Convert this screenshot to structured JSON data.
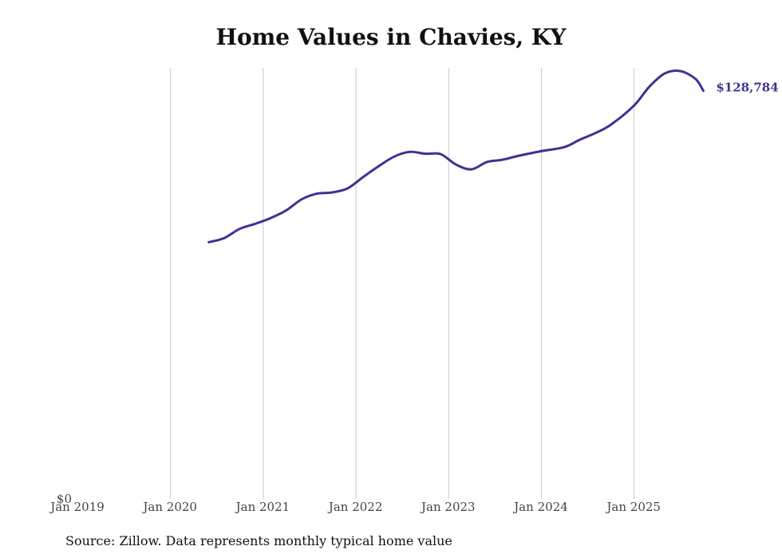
{
  "chart_data": {
    "type": "line",
    "title": "Home Values in Chavies, KY",
    "xlabel": "",
    "ylabel": "",
    "x_ticks": [
      "Jan 2019",
      "Jan 2020",
      "Jan 2021",
      "Jan 2022",
      "Jan 2023",
      "Jan 2024",
      "Jan 2025"
    ],
    "y_ticks": [
      "$0"
    ],
    "ylim": [
      0,
      136000
    ],
    "x_range": [
      "2019-01",
      "2025-12"
    ],
    "grid": "vertical",
    "line_color": "#3a3591",
    "end_label": "$128,784",
    "series": [
      {
        "points": [
          [
            "2020-06",
            81000
          ],
          [
            "2020-08",
            82300
          ],
          [
            "2020-10",
            85200
          ],
          [
            "2020-12",
            86800
          ],
          [
            "2021-02",
            88600
          ],
          [
            "2021-04",
            91000
          ],
          [
            "2021-06",
            94500
          ],
          [
            "2021-08",
            96300
          ],
          [
            "2021-10",
            96700
          ],
          [
            "2021-12",
            98000
          ],
          [
            "2022-02",
            101600
          ],
          [
            "2022-04",
            105000
          ],
          [
            "2022-06",
            108000
          ],
          [
            "2022-08",
            109500
          ],
          [
            "2022-10",
            108900
          ],
          [
            "2022-12",
            108800
          ],
          [
            "2023-02",
            105500
          ],
          [
            "2023-04",
            104000
          ],
          [
            "2023-06",
            106300
          ],
          [
            "2023-08",
            107000
          ],
          [
            "2023-10",
            108200
          ],
          [
            "2024-01",
            109700
          ],
          [
            "2024-04",
            111000
          ],
          [
            "2024-06",
            113300
          ],
          [
            "2024-08",
            115400
          ],
          [
            "2024-10",
            118000
          ],
          [
            "2025-01",
            124000
          ],
          [
            "2025-03",
            130000
          ],
          [
            "2025-05",
            134200
          ],
          [
            "2025-07",
            135000
          ],
          [
            "2025-09",
            132500
          ],
          [
            "2025-10",
            128784
          ]
        ]
      }
    ]
  },
  "footer": {
    "source": "Source: Zillow. Data represents monthly typical home value"
  }
}
